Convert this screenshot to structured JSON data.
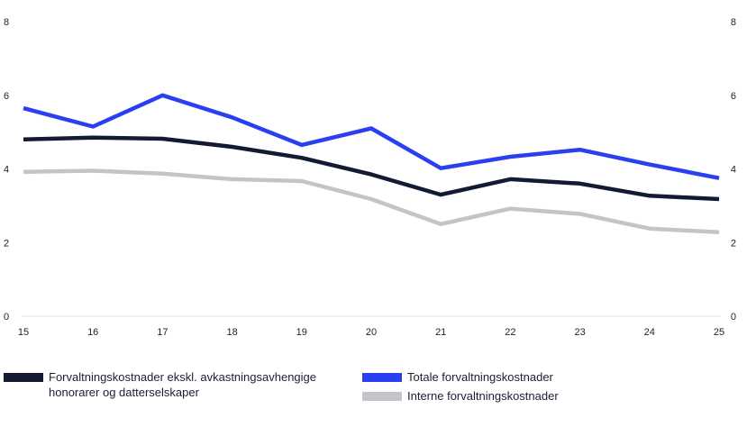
{
  "chart_data": {
    "type": "line",
    "x": [
      "15",
      "16",
      "17",
      "18",
      "19",
      "20",
      "21",
      "22",
      "23",
      "24",
      "25"
    ],
    "yticks": [
      "0",
      "2",
      "4",
      "6",
      "8"
    ],
    "ylim": [
      0,
      8
    ],
    "grid": false,
    "legend_position": "bottom",
    "series": [
      {
        "name": "Totale forvaltningskostnader",
        "color": "#2a3ff0",
        "values": [
          5.65,
          5.15,
          6.0,
          5.4,
          4.65,
          5.1,
          4.02,
          4.33,
          4.52,
          4.12,
          3.75
        ]
      },
      {
        "name": "Forvaltningskostnader ekskl. avkastningsavhengige honorarer og datterselskaper",
        "color": "#141a33",
        "values": [
          4.8,
          4.85,
          4.82,
          4.6,
          4.3,
          3.85,
          3.3,
          3.72,
          3.6,
          3.27,
          3.18
        ]
      },
      {
        "name": "Interne forvaltningskostnader",
        "color": "#c2c4c8",
        "values": [
          3.92,
          3.95,
          3.87,
          3.72,
          3.67,
          3.18,
          2.5,
          2.92,
          2.78,
          2.38,
          2.28
        ]
      }
    ]
  },
  "legend": {
    "dark_label_line1": "Forvaltningskostnader ekskl. avkastningsavhengige",
    "dark_label_line2": "honorarer og datterselskaper",
    "blue_label": "Totale forvaltningskostnader",
    "grey_label": "Interne forvaltningskostnader"
  }
}
